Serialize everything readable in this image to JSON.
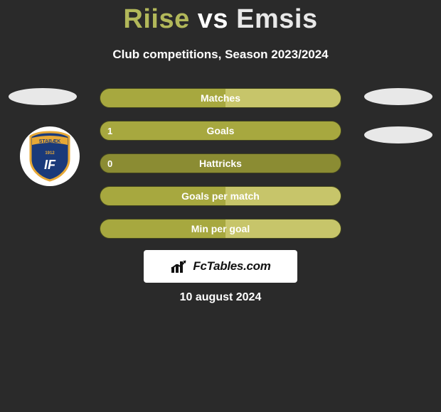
{
  "title": {
    "player1": "Riise",
    "vs": "vs",
    "player2": "Emsis"
  },
  "subtitle": "Club competitions, Season 2023/2024",
  "colors": {
    "bg": "#2a2a2a",
    "row_base": "#8b8c33",
    "row_fill_left": "#a7a83f",
    "row_fill_right": "#c7c56a",
    "row_border": "#43461f",
    "text": "#ffffff",
    "p1_title": "#b2b85a",
    "p2_title": "#e8e8e8"
  },
  "rows": [
    {
      "label": "Matches",
      "left_val": "",
      "right_val": "",
      "left_pct": 52,
      "right_pct": 48
    },
    {
      "label": "Goals",
      "left_val": "1",
      "right_val": "",
      "left_pct": 100,
      "right_pct": 0
    },
    {
      "label": "Hattricks",
      "left_val": "0",
      "right_val": "",
      "left_pct": 0,
      "right_pct": 0
    },
    {
      "label": "Goals per match",
      "left_val": "",
      "right_val": "",
      "left_pct": 52,
      "right_pct": 48
    },
    {
      "label": "Min per goal",
      "left_val": "",
      "right_val": "",
      "left_pct": 52,
      "right_pct": 48
    }
  ],
  "crest": {
    "shield_fill": "#1a3a7a",
    "shield_stroke": "#e6a836",
    "banner_text": "STABÆK",
    "center_text": "IF",
    "year": "1912"
  },
  "fctables_label": "FcTables.com",
  "date": "10 august 2024"
}
